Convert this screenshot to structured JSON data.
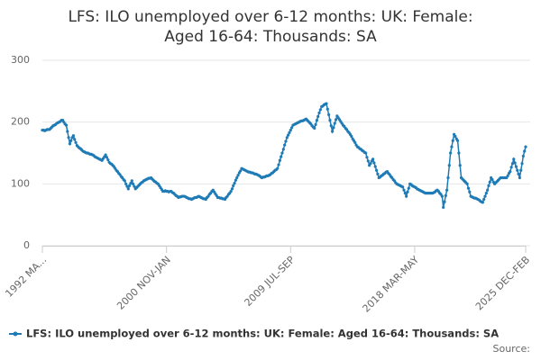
{
  "chart_data": {
    "type": "line",
    "title": "LFS: ILO unemployed over 6-12 months: UK: Female: Aged 16-64: Thousands: SA",
    "source_label": "Source:",
    "ylim": [
      0,
      300
    ],
    "yticks": [
      0,
      100,
      200,
      300
    ],
    "grid": true,
    "categories": [
      "1992 MA...",
      null,
      null,
      null,
      null,
      null,
      null,
      null,
      null,
      null,
      null,
      null,
      null,
      null,
      null,
      null,
      null,
      null,
      null,
      null,
      null,
      null,
      null,
      null,
      null,
      null,
      null,
      null,
      null,
      null,
      null,
      null,
      null,
      null,
      null,
      null,
      null,
      null,
      null,
      null,
      null,
      null,
      null,
      null,
      null,
      null,
      null,
      null,
      null,
      null,
      null,
      null,
      null,
      null,
      null,
      null,
      null,
      null,
      null,
      null,
      null,
      null,
      null,
      null,
      null,
      null,
      null,
      null,
      null,
      null,
      null,
      null,
      null,
      null,
      null,
      null,
      null,
      null,
      null,
      null,
      null,
      null,
      null,
      null,
      null,
      null,
      null,
      null,
      null,
      null,
      null,
      null,
      null,
      null,
      null,
      null,
      null,
      null,
      null,
      null,
      null,
      null,
      null,
      null,
      "2000 NOV-JAN",
      null,
      null,
      null,
      null,
      null,
      null,
      null,
      null,
      null,
      null,
      null,
      null,
      null,
      null,
      null,
      null,
      null,
      null,
      null,
      null,
      null,
      null,
      null,
      null,
      null,
      null,
      null,
      null,
      null,
      null,
      null,
      null,
      null,
      null,
      null,
      null,
      null,
      null,
      null,
      null,
      null,
      null,
      null,
      null,
      null,
      null,
      null,
      null,
      null,
      null,
      null,
      null,
      null,
      null,
      null,
      null,
      null,
      null,
      null,
      null,
      null,
      null,
      null,
      null,
      null,
      null,
      null,
      null,
      null,
      null,
      null,
      null,
      null,
      null,
      null,
      null,
      null,
      null,
      null,
      null,
      null,
      null,
      null,
      null,
      null,
      null,
      null,
      null,
      null,
      null,
      null,
      null,
      null,
      null,
      null,
      null,
      null,
      null,
      null,
      null,
      null,
      null,
      null,
      "2009 JUL-SEP",
      null,
      null,
      null,
      null,
      null,
      null,
      null,
      null,
      null,
      null,
      null,
      null,
      null,
      null,
      null,
      null,
      null,
      null,
      null,
      null,
      null,
      null,
      null,
      null,
      null,
      null,
      null,
      null,
      null,
      null,
      null,
      null,
      null,
      null,
      null,
      null,
      null,
      null,
      null,
      null,
      null,
      null,
      null,
      null,
      null,
      null,
      null,
      null,
      null,
      null,
      null,
      null,
      null,
      null,
      null,
      null,
      null,
      null,
      null,
      null,
      null,
      null,
      null,
      null,
      null,
      null,
      null,
      null,
      null,
      null,
      null,
      null,
      null,
      null,
      null,
      null,
      null,
      null,
      null,
      null,
      null,
      null,
      null,
      null,
      null,
      null,
      null,
      null,
      null,
      null,
      null,
      null,
      null,
      null,
      null,
      null,
      null,
      null,
      null,
      null,
      null,
      null,
      null,
      "2018 MAR-MAY",
      null,
      null,
      null,
      null,
      null,
      null,
      null,
      null,
      null,
      null,
      null,
      null,
      null,
      null,
      null,
      null,
      null,
      null,
      null,
      null,
      null,
      null,
      null,
      null,
      null,
      null,
      null,
      null,
      null,
      null,
      null,
      null,
      null,
      null,
      null,
      null,
      null,
      null,
      null,
      null,
      null,
      null,
      null,
      null,
      null,
      null,
      null,
      null,
      null,
      null,
      null,
      null,
      null,
      null,
      null,
      null,
      null,
      null,
      null,
      null,
      null,
      null,
      null,
      null,
      null,
      null,
      null,
      null,
      null,
      null,
      null,
      null,
      null,
      null,
      null,
      null,
      null,
      null,
      null,
      null,
      null,
      null,
      null,
      null,
      null,
      null,
      null,
      null,
      null,
      null,
      null,
      null,
      "2025 DEC-FEB"
    ],
    "series": [
      {
        "name": "LFS: ILO unemployed over 6-12 months: UK: Female: Aged 16-64: Thousands: SA",
        "color": "#1f7bb6",
        "values": [
          187,
          187,
          186,
          187,
          188,
          188,
          188,
          190,
          192,
          194,
          195,
          196,
          198,
          199,
          200,
          201,
          203,
          203,
          200,
          197,
          195,
          185,
          175,
          165,
          170,
          175,
          178,
          172,
          167,
          162,
          160,
          158,
          157,
          155,
          153,
          152,
          151,
          150,
          150,
          149,
          148,
          148,
          147,
          146,
          144,
          143,
          142,
          141,
          140,
          139,
          138,
          141,
          144,
          147,
          143,
          139,
          135,
          133,
          132,
          130,
          128,
          125,
          122,
          120,
          117,
          115,
          112,
          110,
          107,
          105,
          100,
          96,
          92,
          97,
          101,
          105,
          100,
          96,
          92,
          94,
          96,
          98,
          100,
          102,
          103,
          105,
          106,
          107,
          108,
          109,
          109,
          110,
          108,
          106,
          104,
          103,
          101,
          100,
          97,
          94,
          91,
          88,
          88,
          89,
          88,
          88,
          87,
          88,
          88,
          86,
          85,
          83,
          81,
          80,
          78,
          79,
          79,
          80,
          80,
          80,
          79,
          78,
          77,
          76,
          76,
          75,
          76,
          77,
          78,
          78,
          79,
          80,
          79,
          78,
          77,
          76,
          76,
          75,
          78,
          80,
          83,
          85,
          88,
          90,
          87,
          84,
          81,
          78,
          78,
          77,
          77,
          76,
          76,
          75,
          78,
          80,
          83,
          85,
          88,
          92,
          97,
          101,
          106,
          110,
          114,
          118,
          121,
          125,
          124,
          123,
          122,
          121,
          120,
          119,
          119,
          118,
          118,
          117,
          116,
          116,
          115,
          114,
          113,
          111,
          110,
          111,
          111,
          112,
          113,
          113,
          114,
          115,
          117,
          118,
          120,
          122,
          123,
          125,
          131,
          138,
          144,
          150,
          156,
          163,
          169,
          175,
          179,
          183,
          187,
          191,
          195,
          196,
          197,
          198,
          199,
          200,
          201,
          202,
          202,
          203,
          204,
          205,
          203,
          201,
          199,
          197,
          194,
          192,
          190,
          196,
          203,
          209,
          215,
          220,
          225,
          226,
          228,
          229,
          230,
          221,
          212,
          203,
          194,
          185,
          191,
          198,
          204,
          210,
          207,
          204,
          201,
          198,
          195,
          193,
          190,
          188,
          185,
          183,
          180,
          177,
          173,
          170,
          167,
          163,
          160,
          159,
          157,
          156,
          154,
          153,
          151,
          150,
          143,
          137,
          130,
          133,
          137,
          140,
          134,
          128,
          122,
          116,
          110,
          111,
          113,
          114,
          116,
          117,
          119,
          120,
          117,
          115,
          112,
          110,
          107,
          105,
          102,
          100,
          99,
          98,
          97,
          96,
          95,
          90,
          85,
          80,
          87,
          93,
          100,
          99,
          97,
          96,
          95,
          94,
          92,
          91,
          90,
          89,
          88,
          87,
          86,
          85,
          85,
          85,
          85,
          85,
          85,
          85,
          86,
          87,
          89,
          90,
          88,
          85,
          83,
          80,
          62,
          71,
          81,
          90,
          110,
          130,
          150,
          160,
          170,
          180,
          177,
          173,
          170,
          150,
          130,
          110,
          108,
          106,
          104,
          102,
          100,
          93,
          87,
          80,
          79,
          78,
          77,
          77,
          76,
          75,
          74,
          72,
          71,
          70,
          75,
          80,
          85,
          90,
          97,
          103,
          110,
          107,
          103,
          100,
          102,
          104,
          106,
          108,
          110,
          110,
          110,
          110,
          110,
          110,
          113,
          117,
          120,
          127,
          133,
          140,
          134,
          128,
          122,
          116,
          110,
          122,
          133,
          145,
          153,
          160
        ]
      }
    ]
  }
}
